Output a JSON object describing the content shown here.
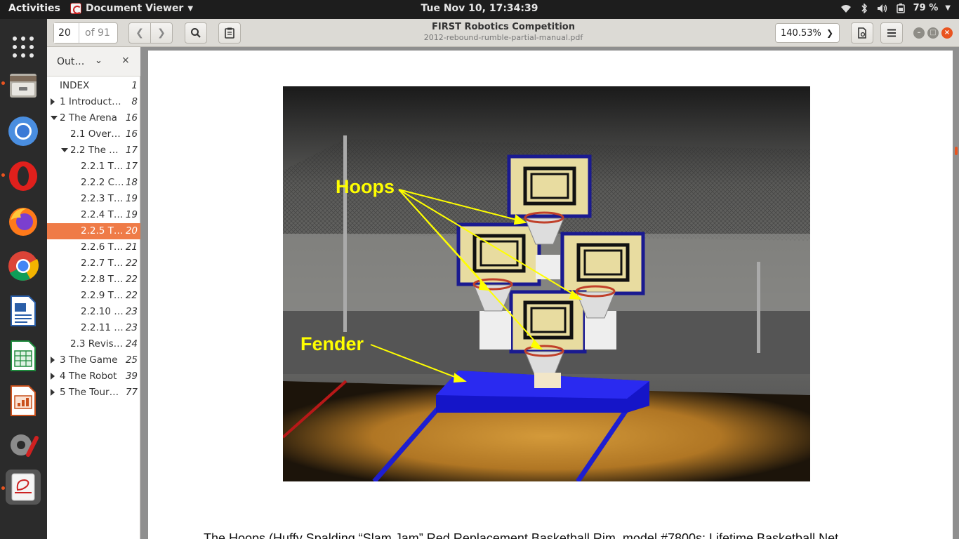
{
  "topbar": {
    "activities": "Activities",
    "app_name": "Document Viewer",
    "clock": "Tue Nov 10, 17:34:39",
    "battery": "79 %"
  },
  "dock": {
    "items": [
      "files-icon",
      "chromium-icon",
      "opera-icon",
      "firefox-icon",
      "chrome-icon",
      "libreoffice-writer-icon",
      "libreoffice-calc-icon",
      "libreoffice-impress-icon",
      "system-tools-icon",
      "document-viewer-icon"
    ]
  },
  "toolbar": {
    "page_value": "20",
    "page_of": "of 91",
    "title": "FIRST Robotics Competition",
    "filename": "2012-rebound-rumble-partial-manual.pdf",
    "zoom": "140.53%"
  },
  "sidebar": {
    "mode": "Out…",
    "outline": [
      {
        "label": "INDEX",
        "page": "1",
        "level": 0,
        "arrow": "none"
      },
      {
        "label": "1 Introduct…",
        "page": "8",
        "level": 0,
        "arrow": "right"
      },
      {
        "label": "2 The Arena",
        "page": "16",
        "level": 0,
        "arrow": "down"
      },
      {
        "label": "2.1 Over…",
        "page": "16",
        "level": 1,
        "arrow": "none"
      },
      {
        "label": "2.2 The …",
        "page": "17",
        "level": 1,
        "arrow": "down"
      },
      {
        "label": "2.2.1 T…",
        "page": "17",
        "level": 2,
        "arrow": "none"
      },
      {
        "label": "2.2.2 C…",
        "page": "18",
        "level": 2,
        "arrow": "none"
      },
      {
        "label": "2.2.3 T…",
        "page": "19",
        "level": 2,
        "arrow": "none"
      },
      {
        "label": "2.2.4 T…",
        "page": "19",
        "level": 2,
        "arrow": "none"
      },
      {
        "label": "2.2.5 T…",
        "page": "20",
        "level": 2,
        "arrow": "none",
        "selected": true
      },
      {
        "label": "2.2.6 T…",
        "page": "21",
        "level": 2,
        "arrow": "none"
      },
      {
        "label": "2.2.7 T…",
        "page": "22",
        "level": 2,
        "arrow": "none"
      },
      {
        "label": "2.2.8 T…",
        "page": "22",
        "level": 2,
        "arrow": "none"
      },
      {
        "label": "2.2.9 T…",
        "page": "22",
        "level": 2,
        "arrow": "none"
      },
      {
        "label": "2.2.10 …",
        "page": "23",
        "level": 2,
        "arrow": "none"
      },
      {
        "label": "2.2.11 …",
        "page": "23",
        "level": 2,
        "arrow": "none"
      },
      {
        "label": "2.3 Revis…",
        "page": "24",
        "level": 1,
        "arrow": "none"
      },
      {
        "label": "3 The Game",
        "page": "25",
        "level": 0,
        "arrow": "right"
      },
      {
        "label": "4 The Robot",
        "page": "39",
        "level": 0,
        "arrow": "right"
      },
      {
        "label": "5 The Tour…",
        "page": "77",
        "level": 0,
        "arrow": "right"
      }
    ]
  },
  "document": {
    "figure_labels": {
      "hoops": "Hoops",
      "fender": "Fender"
    },
    "body_text": "The Hoops (Huffy Spalding “Slam Jam” Red Replacement Basketball Rim, model #7800s; Lifetime Basketball Net"
  },
  "colors": {
    "accent": "#e95420",
    "selection": "#ef7b47",
    "label_yellow": "#ffff00",
    "fender_blue": "#1a1ae0"
  }
}
